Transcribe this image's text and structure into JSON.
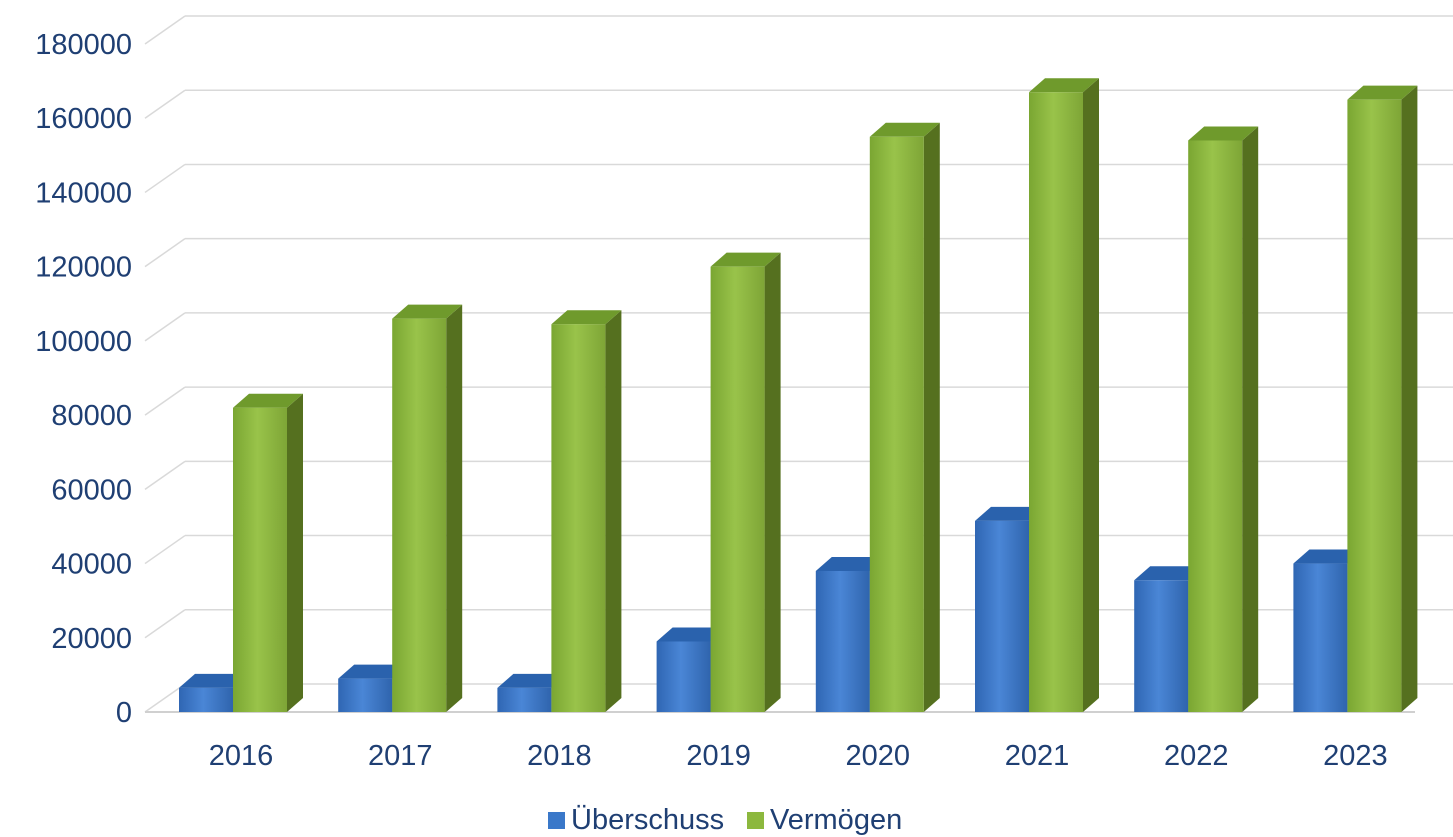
{
  "chart_data": {
    "type": "bar",
    "style": "3d-clustered-column",
    "categories": [
      "2016",
      "2017",
      "2018",
      "2019",
      "2020",
      "2021",
      "2022",
      "2023"
    ],
    "series": [
      {
        "name": "Überschuss",
        "values": [
          6500,
          9000,
          6500,
          19000,
          38000,
          51500,
          35500,
          40000
        ],
        "color": "#3a78c9",
        "side_color": "#1f4e8c",
        "top_color": "#2a62ad"
      },
      {
        "name": "Vermögen",
        "values": [
          82000,
          106000,
          104500,
          120000,
          155000,
          167000,
          154000,
          165000
        ],
        "color": "#8cb83e",
        "side_color": "#55701f",
        "top_color": "#6f9a2c"
      }
    ],
    "ylim": [
      0,
      180000
    ],
    "yticks": [
      "0",
      "20000",
      "40000",
      "60000",
      "80000",
      "100000",
      "120000",
      "140000",
      "160000",
      "180000"
    ],
    "grid": true,
    "legend_position": "bottom",
    "tick_color": "#1f3f73",
    "grid_color": "#d9d9d9"
  }
}
